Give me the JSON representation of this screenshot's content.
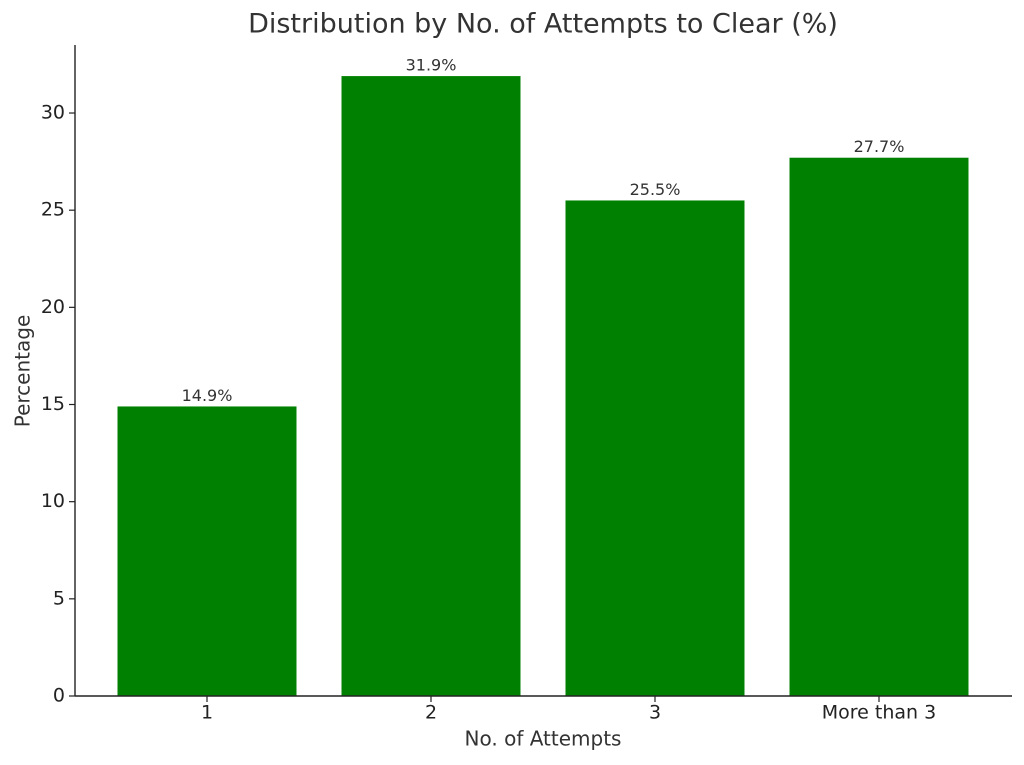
{
  "chart_data": {
    "type": "bar",
    "title": "Distribution by No. of Attempts to Clear (%)",
    "x_label": "No. of Attempts",
    "y_label": "Percentage",
    "categories": [
      "1",
      "2",
      "3",
      "More than 3"
    ],
    "values": [
      14.9,
      31.9,
      25.5,
      27.7
    ],
    "value_labels": [
      "14.9%",
      "31.9%",
      "25.5%",
      "27.7%"
    ],
    "color": "#008000",
    "ylim": [
      0,
      33.5
    ],
    "yticks": [
      0,
      5,
      10,
      15,
      20,
      25,
      30
    ],
    "grid": false
  }
}
